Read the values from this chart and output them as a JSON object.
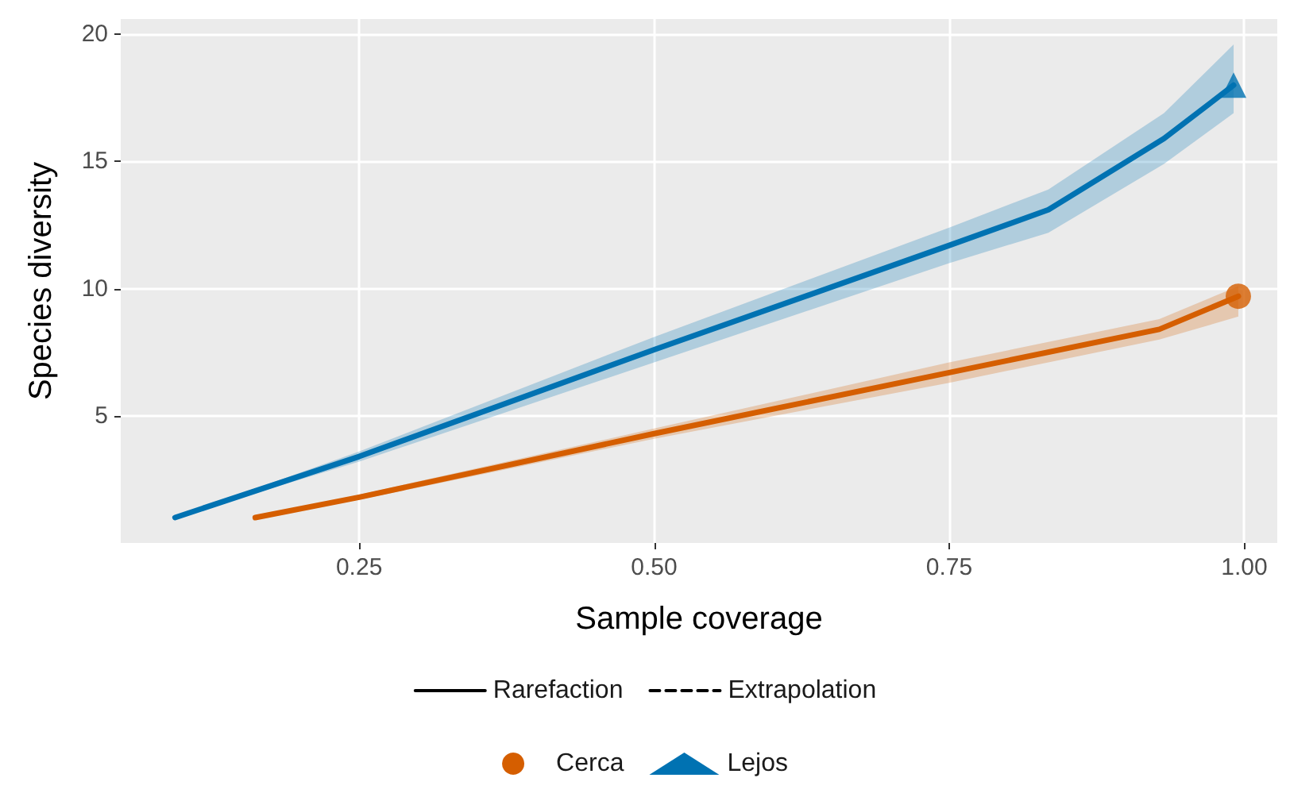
{
  "chart_data": {
    "type": "line",
    "xlabel": "Sample coverage",
    "ylabel": "Species diversity",
    "xlim": [
      0.048,
      1.028
    ],
    "ylim": [
      0,
      20.6
    ],
    "xticks": [
      {
        "value": 0.25,
        "label": "0.25"
      },
      {
        "value": 0.5,
        "label": "0.50"
      },
      {
        "value": 0.75,
        "label": "0.75"
      },
      {
        "value": 1,
        "label": "1.00"
      }
    ],
    "yticks": [
      5,
      10,
      15,
      20
    ],
    "grid": true,
    "legend": "bottom",
    "series": [
      {
        "name": "Rarefaction",
        "color": "#000000",
        "line_style": "solid",
        "marker": "none"
      },
      {
        "name": "Extrapolation",
        "color": "#000000",
        "line_style": "dashed",
        "marker": "none"
      },
      {
        "name": "Cerca",
        "color": "#d55e00",
        "line_style": "solid",
        "x": [
          0.162,
          0.25,
          0.5,
          0.75,
          0.928,
          0.995
        ],
        "values": [
          1,
          1.8,
          4.3,
          6.7,
          8.4,
          9.7
        ],
        "lower": [
          1,
          1.7,
          4.1,
          6.3,
          8.0,
          8.9
        ],
        "upper": [
          1,
          1.9,
          4.5,
          7.1,
          8.8,
          10.1
        ]
      },
      {
        "type": "scatter",
        "color": "#d55e00",
        "marker": "circle",
        "x": [
          0.995
        ],
        "values": [
          9.7
        ]
      },
      {
        "name": "Lejos",
        "color": "#0072b2",
        "line_style": "solid",
        "x": [
          0.094,
          0.25,
          0.5,
          0.75,
          0.834,
          0.932,
          0.991
        ],
        "values": [
          1,
          3.4,
          7.6,
          11.7,
          13.1,
          15.9,
          18
        ],
        "lower": [
          1,
          3.2,
          7.1,
          11.0,
          12.2,
          14.9,
          16.9
        ],
        "upper": [
          1,
          3.6,
          8.1,
          12.4,
          13.9,
          16.9,
          19.6
        ]
      },
      {
        "type": "scatter",
        "color": "#0072b2",
        "marker": "triangle",
        "x": [
          0.991
        ],
        "values": [
          18
        ]
      }
    ]
  }
}
